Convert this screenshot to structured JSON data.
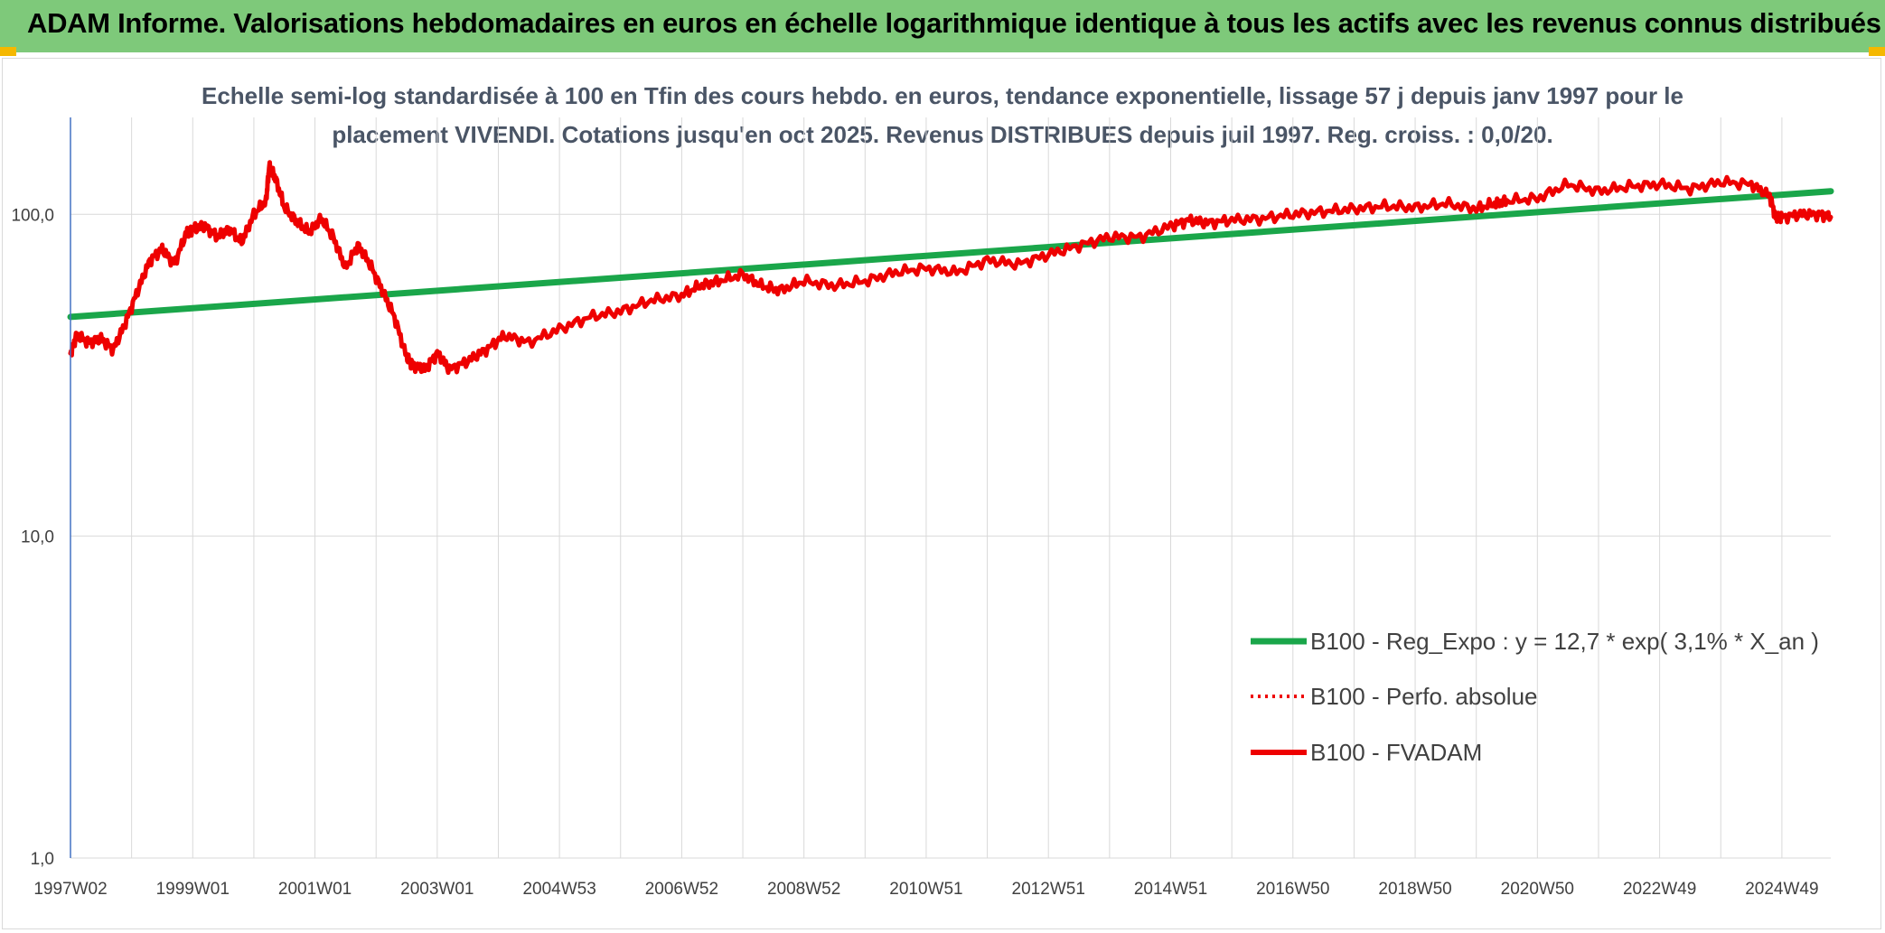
{
  "header": {
    "title": "ADAM Informe. Valorisations hebdomadaires en euros en échelle logarithmique identique à tous les actifs avec les revenus connus distribués"
  },
  "colors": {
    "header_bg": "#7ec97a",
    "corner": "#f5b800",
    "regression": "#1aa64a",
    "fvadam": "#ee0000",
    "perfo": "#ee0000",
    "grid": "#d9d9d9",
    "axis": "#4472c4"
  },
  "chart_data": {
    "type": "line",
    "title_lines": [
      "Echelle semi-log standardisée à 100 en Tfin des cours hebdo. en euros, tendance exponentielle, lissage 57 j depuis janv 1997 pour le",
      "placement VIVENDI. Cotations jusqu'en oct 2025. Revenus DISTRIBUES depuis juil 1997. Reg. croiss. : 0,0/20."
    ],
    "y_scale": "log",
    "ylim": [
      1,
      200
    ],
    "y_ticks": [
      {
        "value": 1,
        "label": "1,0"
      },
      {
        "value": 10,
        "label": "10,0"
      },
      {
        "value": 100,
        "label": "100,0"
      }
    ],
    "x_unit": "year",
    "xlim": [
      1997.0,
      2025.8
    ],
    "x_ticks": [
      {
        "value": 1997.0,
        "label": "1997W02"
      },
      {
        "value": 1999.0,
        "label": "1999W01"
      },
      {
        "value": 2001.0,
        "label": "2001W01"
      },
      {
        "value": 2003.0,
        "label": "2003W01"
      },
      {
        "value": 2005.0,
        "label": "2004W53"
      },
      {
        "value": 2007.0,
        "label": "2006W52"
      },
      {
        "value": 2009.0,
        "label": "2008W52"
      },
      {
        "value": 2011.0,
        "label": "2010W51"
      },
      {
        "value": 2013.0,
        "label": "2012W51"
      },
      {
        "value": 2015.0,
        "label": "2014W51"
      },
      {
        "value": 2017.0,
        "label": "2016W50"
      },
      {
        "value": 2019.0,
        "label": "2018W50"
      },
      {
        "value": 2021.0,
        "label": "2020W50"
      },
      {
        "value": 2023.0,
        "label": "2022W49"
      },
      {
        "value": 2025.0,
        "label": "2024W49"
      }
    ],
    "grid": "vertical-and-major-horizontal",
    "legend_position": "bottom-right",
    "series": [
      {
        "name": "B100 - Reg_Expo : y = 12,7 * exp( 3,1% *  X_an )",
        "style": "solid",
        "color": "#1aa64a",
        "x": [
          1997.0,
          2025.8
        ],
        "y": [
          48,
          118
        ]
      },
      {
        "name": "B100 - Perfo. absolue",
        "style": "dotted",
        "color": "#ee0000",
        "x": [],
        "y": []
      },
      {
        "name": "B100 - FVADAM",
        "style": "solid",
        "color": "#ee0000",
        "x": [
          1997.0,
          1997.1,
          1997.3,
          1997.5,
          1997.7,
          1997.9,
          1998.1,
          1998.3,
          1998.5,
          1998.7,
          1998.9,
          1999.0,
          1999.2,
          1999.4,
          1999.6,
          1999.8,
          2000.0,
          2000.2,
          2000.25,
          2000.35,
          2000.5,
          2000.7,
          2000.9,
          2001.1,
          2001.3,
          2001.5,
          2001.7,
          2001.9,
          2002.1,
          2002.3,
          2002.5,
          2002.6,
          2002.8,
          2003.0,
          2003.2,
          2003.5,
          2003.8,
          2004.1,
          2004.5,
          2005.0,
          2005.5,
          2006.0,
          2006.5,
          2007.0,
          2007.3,
          2007.6,
          2008.0,
          2008.3,
          2008.6,
          2009.0,
          2009.5,
          2010.0,
          2010.5,
          2011.0,
          2011.5,
          2012.0,
          2012.5,
          2013.0,
          2013.5,
          2014.0,
          2014.5,
          2015.0,
          2015.3,
          2015.6,
          2016.0,
          2016.5,
          2017.0,
          2017.5,
          2018.0,
          2018.5,
          2019.0,
          2019.5,
          2020.0,
          2020.3,
          2020.5,
          2021.0,
          2021.5,
          2022.0,
          2022.5,
          2023.0,
          2023.5,
          2024.0,
          2024.5,
          2024.8,
          2024.9,
          2025.0,
          2025.3,
          2025.6,
          2025.8
        ],
        "y": [
          37,
          42,
          40,
          41,
          38,
          46,
          58,
          72,
          78,
          70,
          88,
          90,
          92,
          85,
          90,
          82,
          100,
          110,
          140,
          130,
          105,
          95,
          88,
          97,
          85,
          68,
          80,
          70,
          58,
          48,
          36,
          34,
          33,
          37,
          33,
          35,
          38,
          42,
          40,
          44,
          48,
          50,
          54,
          56,
          60,
          62,
          65,
          60,
          58,
          62,
          60,
          62,
          66,
          68,
          66,
          72,
          70,
          75,
          80,
          85,
          85,
          92,
          96,
          94,
          96,
          97,
          100,
          102,
          104,
          106,
          105,
          108,
          104,
          108,
          110,
          112,
          124,
          118,
          122,
          124,
          120,
          126,
          124,
          114,
          98,
          98,
          100,
          100,
          98
        ]
      }
    ]
  }
}
